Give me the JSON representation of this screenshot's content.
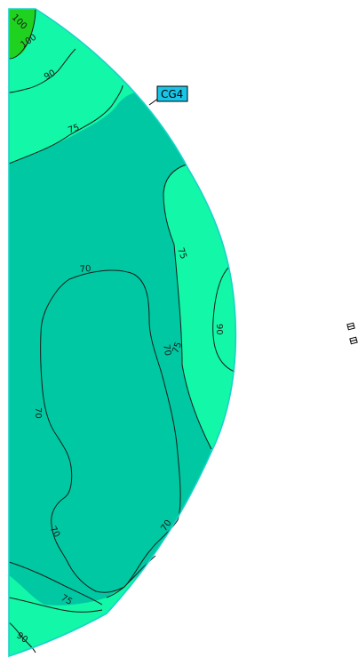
{
  "diagram": {
    "callout": "CG4",
    "colors": {
      "band_100": "#1fd21f",
      "band_90": "#12f7a8",
      "band_75": "#00c8a2",
      "band_70": "#00c8a2",
      "outline": "#19d3c8",
      "contour": "#1a1a1a",
      "callout_fill": "#19c4e6"
    },
    "contour_labels": {
      "l100a": "100",
      "l100b": "100",
      "l90a": "90",
      "l75a": "75",
      "l75b": "75",
      "l75c": "75",
      "l90b": "90",
      "l70a": "70",
      "l70b": "70",
      "l70c": "70",
      "l70d": "70",
      "l70e": "70",
      "l75d": "75",
      "l90c": "90"
    }
  }
}
